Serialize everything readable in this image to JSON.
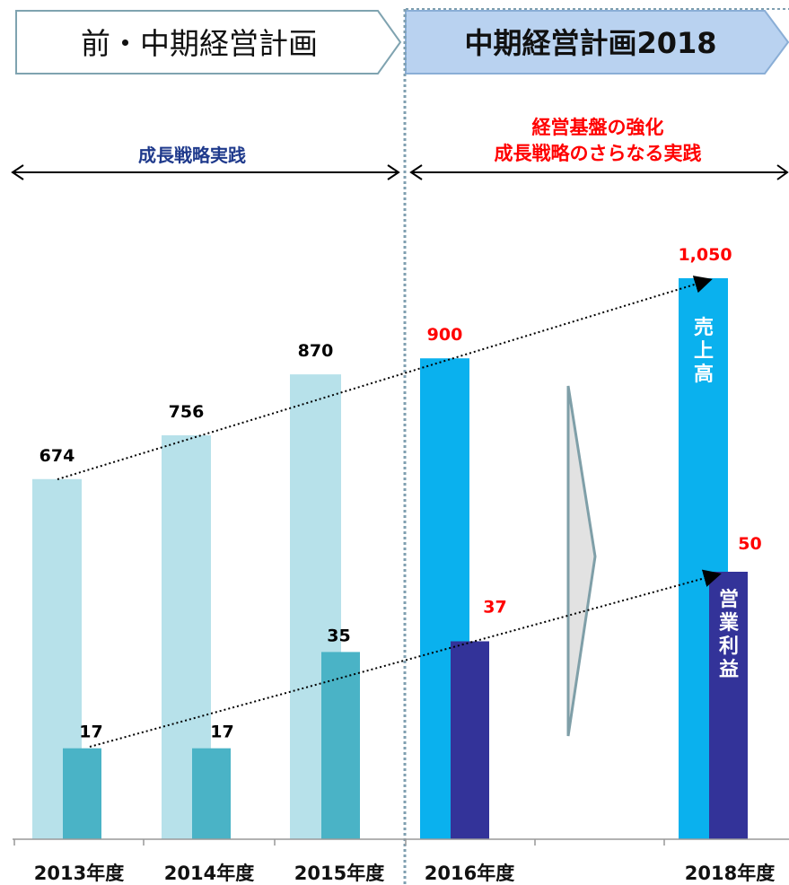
{
  "header": {
    "left_title": "前・中期経営計画",
    "right_title": "中期経営計画2018"
  },
  "phases": {
    "left": "成長戦略実践",
    "right_line1": "経営基盤の強化",
    "right_line2": "成長戦略のさらなる実践"
  },
  "labels": {
    "sales_vertical": "売上高",
    "profit_vertical": "営業利益"
  },
  "colors": {
    "sales_past": "#b7e1ea",
    "profit_past": "#4ab3c6",
    "sales_plan": "#0ab1ee",
    "profit_plan": "#333399",
    "plan_value_text": "#ff0000",
    "past_value_text": "#000000",
    "phase_left_text": "#1f3a8c",
    "phase_right_text": "#ff0000",
    "header_right_fill": "#b9d2f0",
    "divider": "#7f9fb0"
  },
  "chart_data": {
    "type": "bar",
    "categories": [
      "2013年度",
      "2014年度",
      "2015年度",
      "2016年度",
      "",
      "2018年度"
    ],
    "series": [
      {
        "name": "売上高",
        "values": [
          674,
          756,
          870,
          900,
          null,
          1050
        ]
      },
      {
        "name": "営業利益",
        "values": [
          17,
          17,
          35,
          37,
          null,
          50
        ]
      }
    ],
    "value_labels": {
      "sales": [
        "674",
        "756",
        "870",
        "900",
        "",
        "1,050"
      ],
      "profit": [
        "17",
        "17",
        "35",
        "37",
        "",
        "50"
      ]
    },
    "grid": false
  }
}
